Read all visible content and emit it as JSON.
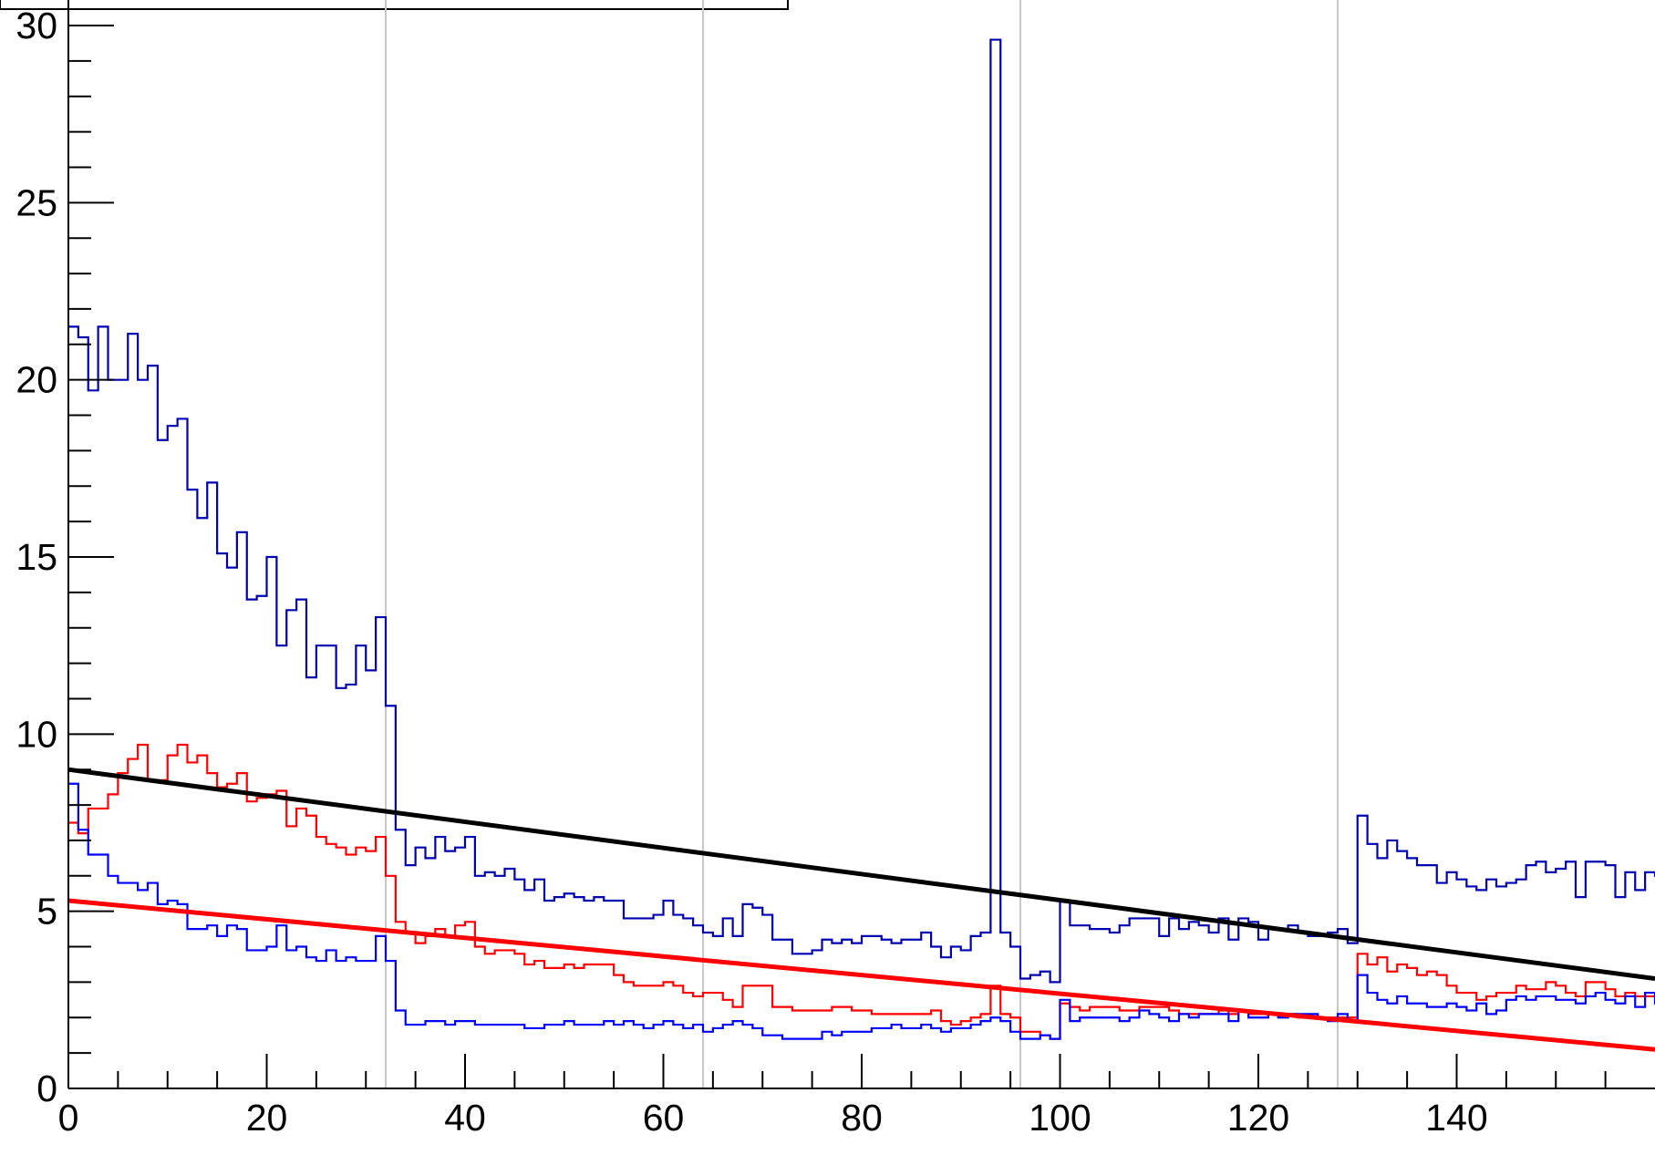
{
  "chart_data": {
    "type": "line",
    "title": "",
    "xlabel": "",
    "ylabel": "",
    "xlim": [
      0,
      160
    ],
    "ylim": [
      0,
      30
    ],
    "x_ticks": [
      0,
      20,
      40,
      60,
      80,
      100,
      120,
      140
    ],
    "y_ticks": [
      0,
      5,
      10,
      15,
      20,
      25,
      30
    ],
    "x_tick_labels": [
      "0",
      "20",
      "40",
      "60",
      "80",
      "100",
      "120",
      "140"
    ],
    "y_tick_labels": [
      "0",
      "5",
      "10",
      "15",
      "20",
      "25",
      "30"
    ],
    "grid_x": [
      0,
      32,
      64,
      96,
      128
    ],
    "legend": "top-left (partially cut off, no visible text)",
    "bin_edges_start": 0,
    "bin_width": 1,
    "series": [
      {
        "kind": "histogram",
        "color": "#0000b0",
        "values": [
          21.5,
          21.2,
          19.7,
          21.5,
          20.0,
          20.0,
          21.3,
          20.0,
          20.4,
          18.3,
          18.7,
          18.9,
          16.9,
          16.1,
          17.1,
          15.1,
          14.7,
          15.7,
          13.8,
          13.9,
          15.0,
          12.5,
          13.5,
          13.8,
          11.6,
          12.5,
          12.5,
          11.3,
          11.4,
          12.5,
          11.8,
          13.3,
          10.8,
          7.3,
          6.3,
          6.8,
          6.5,
          7.1,
          6.7,
          6.8,
          7.1,
          6.0,
          6.1,
          6.0,
          6.2,
          5.9,
          5.6,
          5.9,
          5.3,
          5.4,
          5.5,
          5.4,
          5.3,
          5.4,
          5.3,
          5.3,
          4.8,
          4.8,
          4.8,
          4.9,
          5.3,
          4.9,
          4.8,
          4.6,
          4.4,
          4.3,
          4.8,
          4.3,
          5.2,
          5.1,
          4.9,
          4.2,
          4.2,
          3.8,
          3.8,
          3.9,
          4.2,
          4.1,
          4.2,
          4.1,
          4.3,
          4.3,
          4.2,
          4.1,
          4.2,
          4.2,
          4.4,
          4.0,
          3.7,
          4.0,
          3.9,
          4.3,
          4.4,
          29.6,
          4.4,
          4.0,
          3.1,
          3.2,
          3.3,
          3.0,
          5.3,
          4.6,
          4.6,
          4.5,
          4.5,
          4.4,
          4.6,
          4.8,
          4.8,
          4.8,
          4.3,
          4.8,
          4.5,
          4.7,
          4.6,
          4.4,
          4.8,
          4.2,
          4.8,
          4.7,
          4.2,
          4.5,
          4.5,
          4.6,
          4.4,
          4.3,
          4.3,
          4.4,
          4.5,
          4.1,
          7.7,
          6.9,
          6.5,
          7.0,
          6.7,
          6.5,
          6.3,
          6.3,
          5.8,
          6.1,
          5.9,
          5.7,
          5.6,
          5.9,
          5.7,
          5.8,
          5.9,
          6.3,
          6.4,
          6.1,
          6.2,
          6.4,
          5.4,
          6.4,
          6.4,
          6.3,
          5.4,
          6.1,
          5.6,
          6.1,
          6.0,
          6.0,
          6.5,
          5.7
        ]
      },
      {
        "kind": "histogram",
        "color": "#ff0000",
        "values": [
          7.5,
          7.2,
          7.9,
          7.9,
          8.3,
          8.9,
          9.3,
          9.7,
          8.7,
          8.7,
          9.4,
          9.7,
          9.2,
          9.4,
          8.9,
          8.5,
          8.6,
          8.9,
          8.1,
          8.2,
          8.3,
          8.4,
          7.4,
          7.9,
          7.7,
          7.1,
          6.9,
          6.8,
          6.6,
          6.8,
          6.7,
          7.1,
          6.0,
          4.7,
          4.4,
          4.1,
          4.3,
          4.5,
          4.3,
          4.6,
          4.7,
          4.0,
          3.8,
          3.9,
          3.9,
          3.8,
          3.5,
          3.6,
          3.4,
          3.4,
          3.5,
          3.4,
          3.5,
          3.5,
          3.5,
          3.2,
          3.0,
          2.9,
          2.9,
          2.9,
          3.0,
          2.9,
          2.7,
          2.6,
          2.7,
          2.7,
          2.5,
          2.3,
          2.9,
          2.9,
          2.9,
          2.3,
          2.3,
          2.2,
          2.2,
          2.2,
          2.2,
          2.3,
          2.3,
          2.2,
          2.2,
          2.1,
          2.1,
          2.1,
          2.1,
          2.1,
          2.1,
          2.2,
          1.9,
          1.8,
          1.9,
          2.0,
          2.1,
          2.9,
          2.1,
          2.0,
          1.6,
          1.6,
          1.5,
          1.4,
          2.4,
          2.3,
          2.2,
          2.3,
          2.3,
          2.3,
          2.2,
          2.2,
          2.3,
          2.3,
          2.3,
          2.2,
          2.1,
          2.1,
          2.1,
          2.1,
          2.2,
          2.1,
          2.2,
          2.1,
          2.1,
          2.1,
          2.1,
          2.1,
          2.0,
          2.0,
          2.0,
          2.0,
          2.0,
          2.0,
          3.8,
          3.5,
          3.7,
          3.3,
          3.5,
          3.4,
          3.2,
          3.3,
          3.2,
          2.9,
          2.7,
          2.7,
          2.5,
          2.6,
          2.7,
          2.7,
          2.9,
          2.8,
          2.8,
          3.0,
          2.9,
          2.7,
          2.6,
          3.0,
          3.0,
          2.8,
          2.6,
          2.7,
          2.6,
          2.6,
          2.6,
          2.7,
          2.7,
          2.6
        ]
      },
      {
        "kind": "histogram",
        "color": "#0000ff",
        "values": [
          8.6,
          7.3,
          6.6,
          6.6,
          6.0,
          5.8,
          5.8,
          5.6,
          5.8,
          5.2,
          5.3,
          5.2,
          4.5,
          4.5,
          4.6,
          4.3,
          4.6,
          4.5,
          3.9,
          3.9,
          4.0,
          4.6,
          3.9,
          4.0,
          3.7,
          3.6,
          3.9,
          3.6,
          3.7,
          3.6,
          3.6,
          4.3,
          3.6,
          2.2,
          1.8,
          1.8,
          1.9,
          1.9,
          1.8,
          1.9,
          1.9,
          1.8,
          1.8,
          1.8,
          1.8,
          1.8,
          1.7,
          1.7,
          1.8,
          1.8,
          1.9,
          1.8,
          1.8,
          1.8,
          1.9,
          1.8,
          1.9,
          1.8,
          1.7,
          1.8,
          1.9,
          1.8,
          1.7,
          1.8,
          1.6,
          1.7,
          1.8,
          1.9,
          1.8,
          1.7,
          1.5,
          1.5,
          1.4,
          1.4,
          1.4,
          1.4,
          1.6,
          1.5,
          1.6,
          1.6,
          1.6,
          1.7,
          1.7,
          1.8,
          1.7,
          1.7,
          1.8,
          1.7,
          1.6,
          1.7,
          1.7,
          1.8,
          1.9,
          2.0,
          1.9,
          1.6,
          1.4,
          1.4,
          1.5,
          1.4,
          2.5,
          1.9,
          2.0,
          2.0,
          2.0,
          2.0,
          1.9,
          2.0,
          2.2,
          2.1,
          2.0,
          1.9,
          2.1,
          2.0,
          2.1,
          2.1,
          2.1,
          1.9,
          2.2,
          2.0,
          2.0,
          2.1,
          2.0,
          2.1,
          2.1,
          2.1,
          2.0,
          1.9,
          2.1,
          1.9,
          3.2,
          2.7,
          2.5,
          2.4,
          2.6,
          2.4,
          2.4,
          2.3,
          2.3,
          2.4,
          2.3,
          2.2,
          2.4,
          2.1,
          2.2,
          2.5,
          2.6,
          2.5,
          2.6,
          2.6,
          2.5,
          2.5,
          2.4,
          2.6,
          2.7,
          2.5,
          2.4,
          2.6,
          2.3,
          2.7,
          2.4,
          2.5,
          2.6,
          2.5
        ]
      },
      {
        "kind": "line",
        "color": "#000000",
        "x": [
          0,
          160
        ],
        "y": [
          9.0,
          3.1
        ]
      },
      {
        "kind": "line",
        "color": "#ff0000",
        "x": [
          0,
          160
        ],
        "y": [
          5.3,
          1.1
        ]
      }
    ]
  }
}
